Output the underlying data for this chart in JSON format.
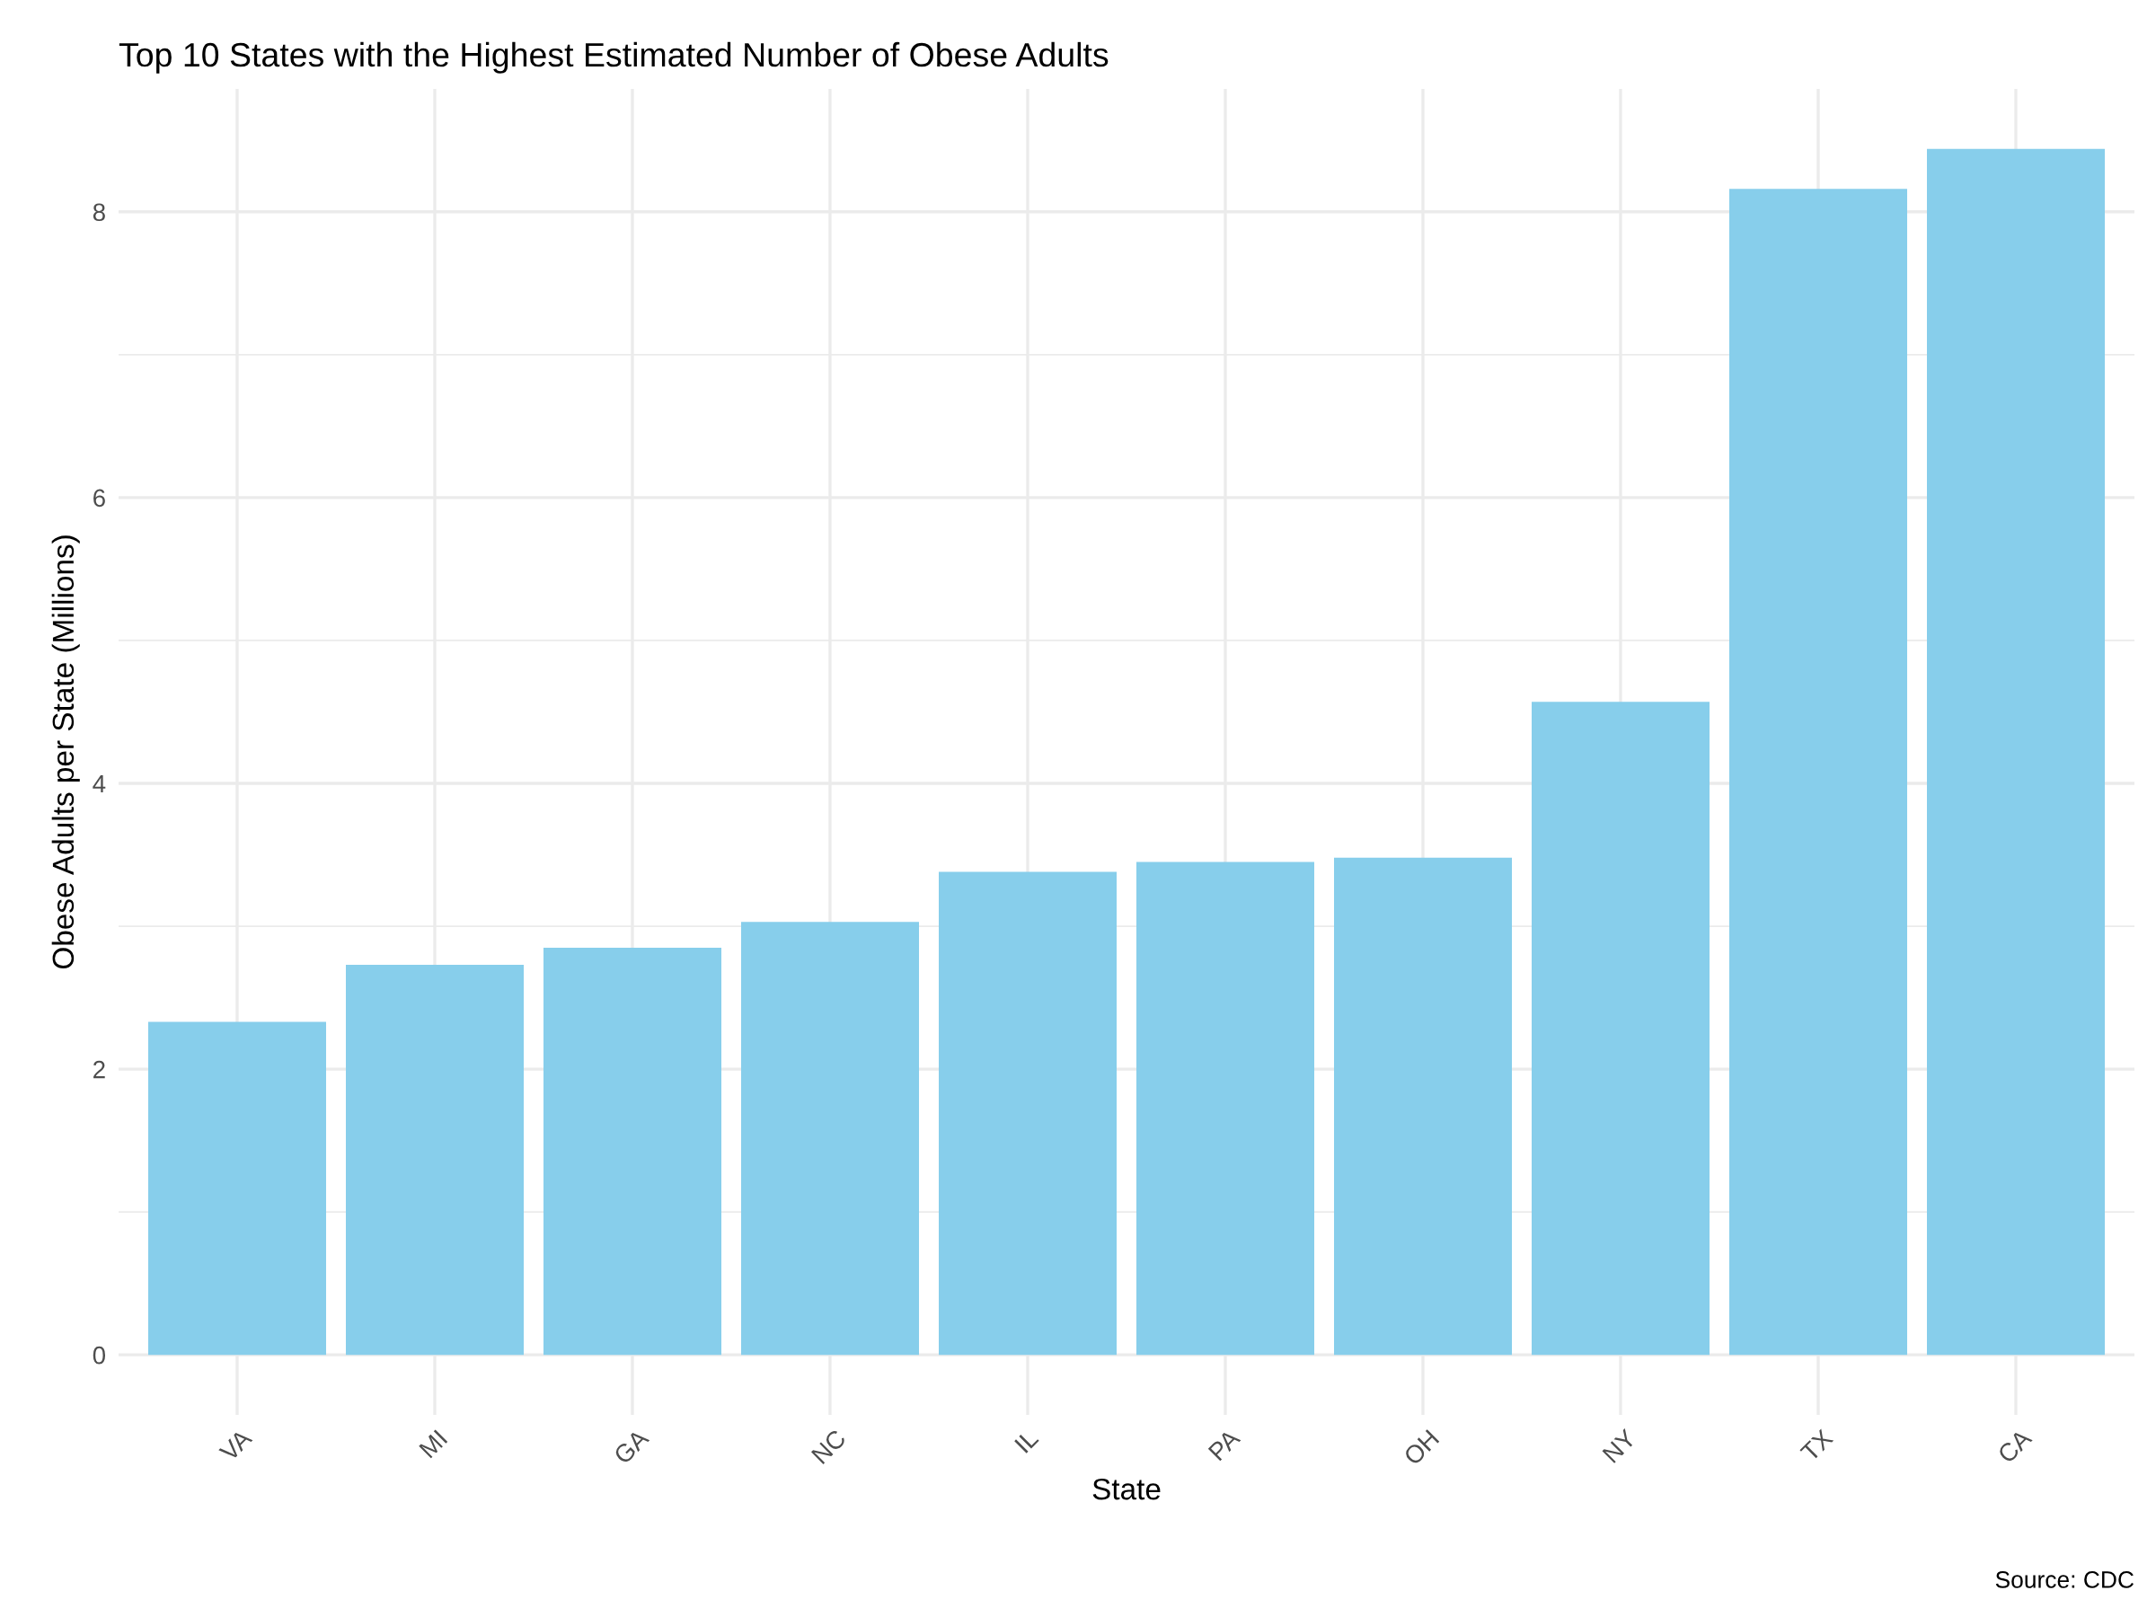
{
  "chart_data": {
    "type": "bar",
    "title": "Top 10 States with the Highest Estimated Number of Obese Adults",
    "xlabel": "State",
    "ylabel": "Obese Adults per State (Millions)",
    "categories": [
      "VA",
      "MI",
      "GA",
      "NC",
      "IL",
      "PA",
      "OH",
      "NY",
      "TX",
      "CA"
    ],
    "values": [
      2.33,
      2.73,
      2.85,
      3.03,
      3.38,
      3.45,
      3.48,
      4.57,
      8.16,
      8.44
    ],
    "color": "#87ceeb",
    "ylim": [
      -0.42,
      8.86
    ],
    "yticks": [
      0,
      2,
      4,
      6,
      8
    ],
    "grid": true,
    "annotations": [
      "Source: CDC"
    ]
  }
}
